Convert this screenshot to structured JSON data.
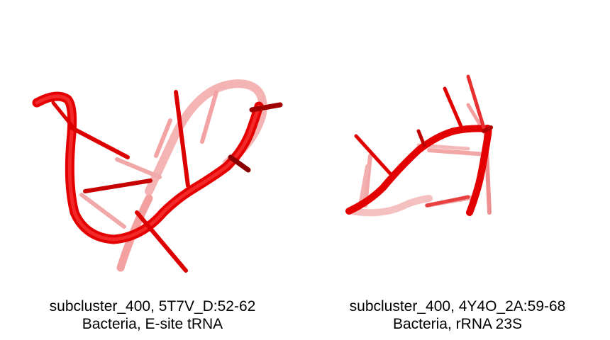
{
  "panels": [
    {
      "caption_line1": "subcluster_400, 5T7V_D:52-62",
      "caption_line2": "Bacteria, E-site tRNA",
      "structure_color": "#e00000"
    },
    {
      "caption_line1": "subcluster_400, 4Y4O_2A:59-68",
      "caption_line2": "Bacteria, rRNA 23S",
      "structure_color": "#e00000"
    }
  ]
}
